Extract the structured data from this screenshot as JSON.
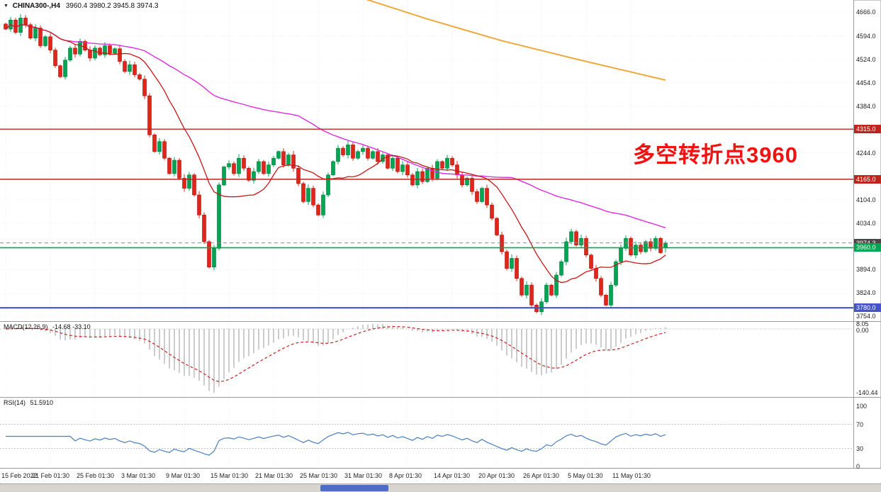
{
  "window": {
    "title": {
      "symbol": "CHINA300-,H4",
      "ohlc": "3960.4 3980.2 3945.8 3974.3"
    }
  },
  "annotation": {
    "text": "多空转折点3960",
    "color": "#f01111"
  },
  "chart_data": {
    "type": "candlestick",
    "symbol": "CHINA300-",
    "timeframe": "H4",
    "last_bar": {
      "open": 3960.4,
      "high": 3980.2,
      "low": 3945.8,
      "close": 3974.3
    },
    "y_range": [
      3740,
      4702
    ],
    "y_ticks": [
      4666,
      4594,
      4524,
      4454,
      4384,
      4244,
      4104,
      4034,
      3894,
      3824,
      3754
    ],
    "x_labels": [
      "15 Feb 2022",
      "21 Feb 01:30",
      "25 Feb 01:30",
      "3 Mar 01:30",
      "9 Mar 01:30",
      "15 Mar 01:30",
      "21 Mar 01:30",
      "25 Mar 01:30",
      "31 Mar 01:30",
      "8 Apr 01:30",
      "14 Apr 01:30",
      "20 Apr 01:30",
      "26 Apr 01:30",
      "5 May 01:30",
      "11 May 01:30"
    ],
    "closes": [
      4615,
      4642,
      4605,
      4648,
      4628,
      4588,
      4618,
      4565,
      4592,
      4552,
      4505,
      4472,
      4522,
      4558,
      4540,
      4578,
      4552,
      4528,
      4558,
      4538,
      4565,
      4542,
      4556,
      4518,
      4488,
      4508,
      4478,
      4465,
      4415,
      4298,
      4248,
      4278,
      4228,
      4182,
      4222,
      4168,
      4138,
      4178,
      4118,
      4058,
      3978,
      3902,
      3958,
      4148,
      4202,
      4212,
      4182,
      4228,
      4198,
      4162,
      4188,
      4218,
      4182,
      4208,
      4228,
      4248,
      4208,
      4238,
      4198,
      4152,
      4098,
      4138,
      4088,
      4058,
      4118,
      4178,
      4218,
      4258,
      4238,
      4268,
      4228,
      4248,
      4258,
      4228,
      4248,
      4218,
      4238,
      4198,
      4228,
      4188,
      4208,
      4178,
      4148,
      4188,
      4158,
      4198,
      4168,
      4218,
      4198,
      4228,
      4208,
      4178,
      4148,
      4168,
      4128,
      4098,
      4138,
      4088,
      4048,
      3998,
      3948,
      3898,
      3928,
      3868,
      3818,
      3848,
      3788,
      3768,
      3798,
      3848,
      3818,
      3878,
      3918,
      3978,
      4008,
      3968,
      3988,
      3938,
      3898,
      3868,
      3818,
      3788,
      3848,
      3918,
      3958,
      3988,
      3938,
      3968,
      3948,
      3978,
      3958,
      3988,
      3945,
      3974.3
    ],
    "candle_up_color": "#00a651",
    "candle_down_color": "#e0261a",
    "levels": [
      {
        "name": "resistance-1",
        "price": 4315,
        "label": "4315.0",
        "color": "#c0241c",
        "badge": "#c0241c",
        "style": "solid",
        "width": 1.4
      },
      {
        "name": "resistance-2",
        "price": 4165,
        "label": "4165.0",
        "color": "#c0241c",
        "badge": "#c0241c",
        "style": "solid",
        "width": 1.4
      },
      {
        "name": "last-price",
        "price": 3974.3,
        "label": "3974.3",
        "color": "#8a8a8a",
        "badge": "#474747",
        "style": "dashed",
        "width": 1
      },
      {
        "name": "pivot-3960",
        "price": 3960,
        "label": "3960.0",
        "color": "#00a651",
        "badge": "#00a651",
        "style": "solid",
        "width": 1.6
      },
      {
        "name": "support-3780",
        "price": 3780,
        "label": "3780.0",
        "color": "#4553c8",
        "badge": "#4553c8",
        "style": "solid",
        "width": 2.2
      }
    ],
    "moving_averages": [
      {
        "name": "ma-fast",
        "period": 13,
        "color": "#c61616"
      },
      {
        "name": "ma-slow",
        "period": 60,
        "color": "#dd2cdd"
      },
      {
        "name": "ma-long",
        "color": "#eea83c",
        "points": [
          [
            71,
            4712
          ],
          [
            85,
            4645
          ],
          [
            100,
            4580
          ],
          [
            115,
            4525
          ],
          [
            133,
            4462
          ]
        ]
      }
    ],
    "indicators": {
      "macd": {
        "label": "MACD(12,26,9)",
        "values": "-14.68 -33.10",
        "params": [
          12,
          26,
          9
        ],
        "scale_ticks": [
          "8.05",
          "0.00",
          "-140.44"
        ],
        "histogram_color": "#9a9a9a",
        "signal_color": "#cc2222"
      },
      "rsi": {
        "label": "RSI(14)",
        "value": "51.5910",
        "period": 14,
        "scale_ticks": [
          100,
          70,
          30,
          0
        ],
        "levels": [
          70,
          30
        ],
        "line_color": "#4a7ebc"
      }
    }
  }
}
